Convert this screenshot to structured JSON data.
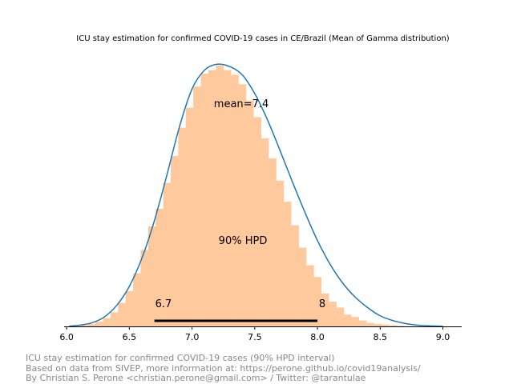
{
  "chart_data": {
    "type": "histogram",
    "title": "ICU stay estimation for confirmed COVID-19 cases in CE/Brazil (Mean of Gamma distribution)",
    "xlabel": "",
    "ylabel": "",
    "xlim": [
      5.98,
      9.15
    ],
    "x_ticks": [
      "6.0",
      "6.5",
      "7.0",
      "7.5",
      "8.0",
      "8.5",
      "9.0"
    ],
    "y_axis_visible": false,
    "grid": false,
    "histogram": {
      "bin_start": 6.05,
      "bin_width": 0.06,
      "densities": [
        0.005,
        0.01,
        0.02,
        0.04,
        0.07,
        0.12,
        0.2,
        0.3,
        0.45,
        0.65,
        0.85,
        1.0,
        1.22,
        1.45,
        1.69,
        1.86,
        2.04,
        2.15,
        2.18,
        2.22,
        2.18,
        2.14,
        2.06,
        1.92,
        1.78,
        1.6,
        1.43,
        1.24,
        1.06,
        0.86,
        0.67,
        0.52,
        0.42,
        0.28,
        0.21,
        0.16,
        0.1,
        0.08,
        0.05,
        0.03,
        0.02,
        0.015,
        0.01,
        0.005,
        0.002,
        0.001,
        0.0005,
        0.0002
      ],
      "color": "#ffc99e"
    },
    "kde": {
      "x": [
        6.02,
        6.1,
        6.2,
        6.3,
        6.4,
        6.5,
        6.6,
        6.7,
        6.8,
        6.9,
        7.0,
        7.1,
        7.2,
        7.3,
        7.4,
        7.5,
        7.6,
        7.7,
        7.8,
        7.9,
        8.0,
        8.1,
        8.2,
        8.3,
        8.4,
        8.5,
        8.6,
        8.7,
        8.8,
        8.9,
        9.0
      ],
      "y": [
        0.002,
        0.01,
        0.03,
        0.08,
        0.18,
        0.34,
        0.58,
        0.9,
        1.29,
        1.7,
        2.02,
        2.18,
        2.23,
        2.21,
        2.14,
        1.98,
        1.76,
        1.5,
        1.23,
        0.97,
        0.73,
        0.53,
        0.37,
        0.25,
        0.16,
        0.09,
        0.05,
        0.025,
        0.01,
        0.004,
        0.001
      ],
      "color": "#1f77b4"
    },
    "hpd": {
      "label": "90% HPD",
      "low": 6.7,
      "high": 8.0,
      "low_label": "6.7",
      "high_label": "8"
    },
    "mean": {
      "value": 7.4,
      "label": "mean=7.4"
    }
  },
  "footer": {
    "line1": "ICU stay estimation for confirmed COVID-19 cases (90% HPD interval)",
    "line2": "Based on data from SIVEP, more information at: https://perone.github.io/covid19analysis/",
    "line3": "By Christian S. Perone <christian.perone@gmail.com> / Twitter: @tarantulae"
  }
}
